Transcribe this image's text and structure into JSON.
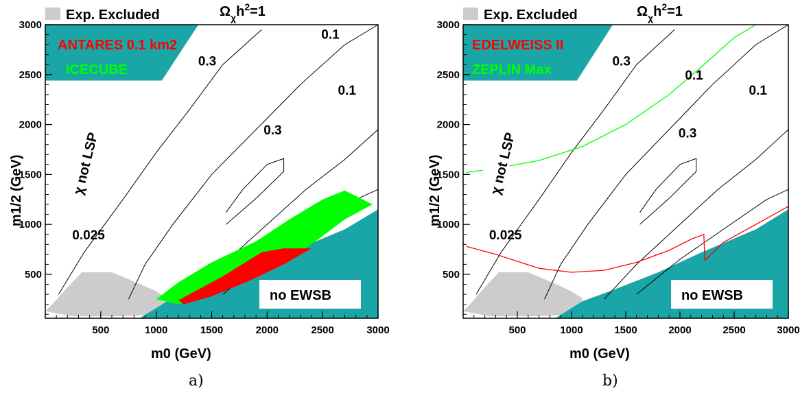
{
  "colors": {
    "excluded": "#cccccc",
    "forbidden": "#1aa6a6",
    "contour": "#000000",
    "antares": "#ff0000",
    "icecube": "#00ff00",
    "edelweiss": "#ff0000",
    "zeplin": "#00ff00"
  },
  "chart_data": [
    {
      "type": "contour",
      "panel_caption": "a)",
      "xlabel": "m0 (GeV)",
      "ylabel": "m1/2 (GeV)",
      "xlim": [
        0,
        3000
      ],
      "ylim": [
        60,
        3000
      ],
      "xticks": [
        "500",
        "1000",
        "1500",
        "2000",
        "2500",
        "3000"
      ],
      "yticks": [
        "500",
        "1000",
        "1500",
        "2000",
        "2500",
        "3000"
      ],
      "top_legend": {
        "excluded_label": "Exp. Excluded",
        "relic_label": "Ωχh²=1"
      },
      "series_labels": [
        "ANTARES 0.1 km2",
        "ICECUBE"
      ],
      "contour_labels": [
        {
          "text": "0.1",
          "x": 2570,
          "y": 2860
        },
        {
          "text": "0.3",
          "x": 1460,
          "y": 2590
        },
        {
          "text": "0.1",
          "x": 2720,
          "y": 2300
        },
        {
          "text": "0.3",
          "x": 2050,
          "y": 1900
        },
        {
          "text": "0.025",
          "x": 390,
          "y": 850
        }
      ],
      "region_labels": {
        "no_lsp": "χ not LSP",
        "no_ewsb": "no EWSB"
      },
      "regions": {
        "excluded": [
          [
            0,
            130
          ],
          [
            80,
            220
          ],
          [
            200,
            370
          ],
          [
            330,
            520
          ],
          [
            600,
            520
          ],
          [
            860,
            400
          ],
          [
            1000,
            330
          ],
          [
            1100,
            260
          ],
          [
            1080,
            150
          ],
          [
            900,
            90
          ],
          [
            600,
            80
          ],
          [
            250,
            80
          ]
        ],
        "no_lsp": [
          [
            0,
            2440
          ],
          [
            1050,
            2440
          ],
          [
            1380,
            3000
          ],
          [
            0,
            3000
          ]
        ],
        "no_ewsb": [
          [
            850,
            60
          ],
          [
            3000,
            60
          ],
          [
            3000,
            1150
          ],
          [
            2700,
            950
          ],
          [
            2200,
            720
          ],
          [
            1800,
            520
          ],
          [
            1400,
            350
          ],
          [
            1100,
            230
          ]
        ]
      },
      "contours": [
        [
          [
            120,
            300
          ],
          [
            350,
            720
          ],
          [
            700,
            1250
          ],
          [
            1000,
            1720
          ],
          [
            1300,
            2150
          ],
          [
            1600,
            2600
          ],
          [
            1950,
            2950
          ]
        ],
        [
          [
            750,
            250
          ],
          [
            900,
            600
          ],
          [
            1150,
            1000
          ],
          [
            1500,
            1500
          ],
          [
            1900,
            1950
          ],
          [
            2300,
            2400
          ],
          [
            2700,
            2800
          ],
          [
            3000,
            3000
          ]
        ],
        [
          [
            1300,
            250
          ],
          [
            1600,
            600
          ],
          [
            1950,
            950
          ],
          [
            2350,
            1350
          ],
          [
            2700,
            1650
          ],
          [
            3000,
            1950
          ]
        ],
        [
          [
            1600,
            300
          ],
          [
            2000,
            650
          ],
          [
            2400,
            950
          ],
          [
            2800,
            1250
          ],
          [
            3000,
            1350
          ]
        ],
        [
          [
            1630,
            1000
          ],
          [
            1900,
            1260
          ],
          [
            2150,
            1530
          ],
          [
            2150,
            1660
          ],
          [
            2000,
            1600
          ],
          [
            1780,
            1350
          ],
          [
            1630,
            1120
          ]
        ]
      ],
      "signal": [
        {
          "name": "ICECUBE",
          "color": "#00ff00",
          "polygon": [
            [
              1000,
              250
            ],
            [
              1200,
              420
            ],
            [
              1500,
              620
            ],
            [
              1900,
              830
            ],
            [
              2200,
              1050
            ],
            [
              2500,
              1250
            ],
            [
              2700,
              1340
            ],
            [
              2950,
              1200
            ],
            [
              2700,
              1050
            ],
            [
              2400,
              800
            ],
            [
              2100,
              600
            ],
            [
              1800,
              420
            ],
            [
              1500,
              280
            ],
            [
              1200,
              200
            ]
          ]
        },
        {
          "name": "ANTARES 0.1 km2",
          "color": "#ff0000",
          "polygon": [
            [
              1200,
              240
            ],
            [
              1600,
              480
            ],
            [
              1950,
              720
            ],
            [
              2150,
              760
            ],
            [
              2400,
              760
            ],
            [
              2150,
              600
            ],
            [
              1850,
              440
            ],
            [
              1500,
              280
            ],
            [
              1250,
              200
            ]
          ]
        }
      ]
    },
    {
      "type": "contour",
      "panel_caption": "b)",
      "xlabel": "m0 (GeV)",
      "ylabel": "m1/2 (GeV)",
      "xlim": [
        0,
        3000
      ],
      "ylim": [
        60,
        3000
      ],
      "xticks": [
        "500",
        "1000",
        "1500",
        "2000",
        "2500",
        "3000"
      ],
      "yticks": [
        "500",
        "1000",
        "1500",
        "2000",
        "2500",
        "3000"
      ],
      "top_legend": {
        "excluded_label": "Exp. Excluded",
        "relic_label": "Ωχh²=1"
      },
      "series_labels": [
        "EDELWEISS II",
        "ZEPLIN Max"
      ],
      "contour_labels": [
        {
          "text": "0.3",
          "x": 1460,
          "y": 2590
        },
        {
          "text": "0.1",
          "x": 2130,
          "y": 2450
        },
        {
          "text": "0.1",
          "x": 2720,
          "y": 2300
        },
        {
          "text": "0.3",
          "x": 2070,
          "y": 1870
        },
        {
          "text": "0.025",
          "x": 390,
          "y": 850
        }
      ],
      "region_labels": {
        "no_lsp": "χ not LSP",
        "no_ewsb": "no EWSB"
      },
      "regions": {
        "excluded": [
          [
            0,
            130
          ],
          [
            80,
            220
          ],
          [
            200,
            370
          ],
          [
            330,
            520
          ],
          [
            600,
            520
          ],
          [
            860,
            400
          ],
          [
            1000,
            330
          ],
          [
            1100,
            260
          ],
          [
            1080,
            150
          ],
          [
            900,
            90
          ],
          [
            600,
            80
          ],
          [
            250,
            80
          ]
        ],
        "no_lsp": [
          [
            0,
            2440
          ],
          [
            1050,
            2440
          ],
          [
            1380,
            3000
          ],
          [
            0,
            3000
          ]
        ],
        "no_ewsb": [
          [
            850,
            60
          ],
          [
            3000,
            60
          ],
          [
            3000,
            1150
          ],
          [
            2700,
            950
          ],
          [
            2200,
            720
          ],
          [
            1800,
            520
          ],
          [
            1400,
            350
          ],
          [
            1100,
            230
          ]
        ]
      },
      "contours": [
        [
          [
            120,
            300
          ],
          [
            350,
            720
          ],
          [
            700,
            1250
          ],
          [
            1000,
            1720
          ],
          [
            1300,
            2150
          ],
          [
            1600,
            2600
          ],
          [
            1950,
            2950
          ]
        ],
        [
          [
            750,
            250
          ],
          [
            900,
            600
          ],
          [
            1150,
            1000
          ],
          [
            1500,
            1500
          ],
          [
            1900,
            1950
          ],
          [
            2300,
            2400
          ],
          [
            2700,
            2800
          ],
          [
            3000,
            3000
          ]
        ],
        [
          [
            1300,
            250
          ],
          [
            1600,
            600
          ],
          [
            1950,
            950
          ],
          [
            2350,
            1350
          ],
          [
            2700,
            1650
          ],
          [
            3000,
            1950
          ]
        ],
        [
          [
            1600,
            300
          ],
          [
            2000,
            650
          ],
          [
            2400,
            950
          ],
          [
            2800,
            1250
          ],
          [
            3000,
            1350
          ]
        ],
        [
          [
            1630,
            1000
          ],
          [
            1900,
            1260
          ],
          [
            2150,
            1530
          ],
          [
            2150,
            1660
          ],
          [
            2000,
            1600
          ],
          [
            1780,
            1350
          ],
          [
            1630,
            1120
          ]
        ]
      ],
      "limits": [
        {
          "name": "ZEPLIN Max",
          "color": "#00ff00",
          "points": [
            [
              30,
              1520
            ],
            [
              300,
              1560
            ],
            [
              700,
              1640
            ],
            [
              1100,
              1780
            ],
            [
              1500,
              2000
            ],
            [
              1900,
              2300
            ],
            [
              2200,
              2580
            ],
            [
              2500,
              2870
            ],
            [
              2700,
              3000
            ]
          ]
        },
        {
          "name": "EDELWEISS II",
          "color": "#ff0000",
          "points": [
            [
              30,
              780
            ],
            [
              300,
              700
            ],
            [
              700,
              560
            ],
            [
              1000,
              520
            ],
            [
              1300,
              540
            ],
            [
              1600,
              620
            ],
            [
              1900,
              740
            ],
            [
              2100,
              850
            ],
            [
              2220,
              900
            ],
            [
              2230,
              640
            ],
            [
              2400,
              820
            ],
            [
              2700,
              1000
            ],
            [
              3000,
              1180
            ]
          ]
        }
      ]
    }
  ]
}
